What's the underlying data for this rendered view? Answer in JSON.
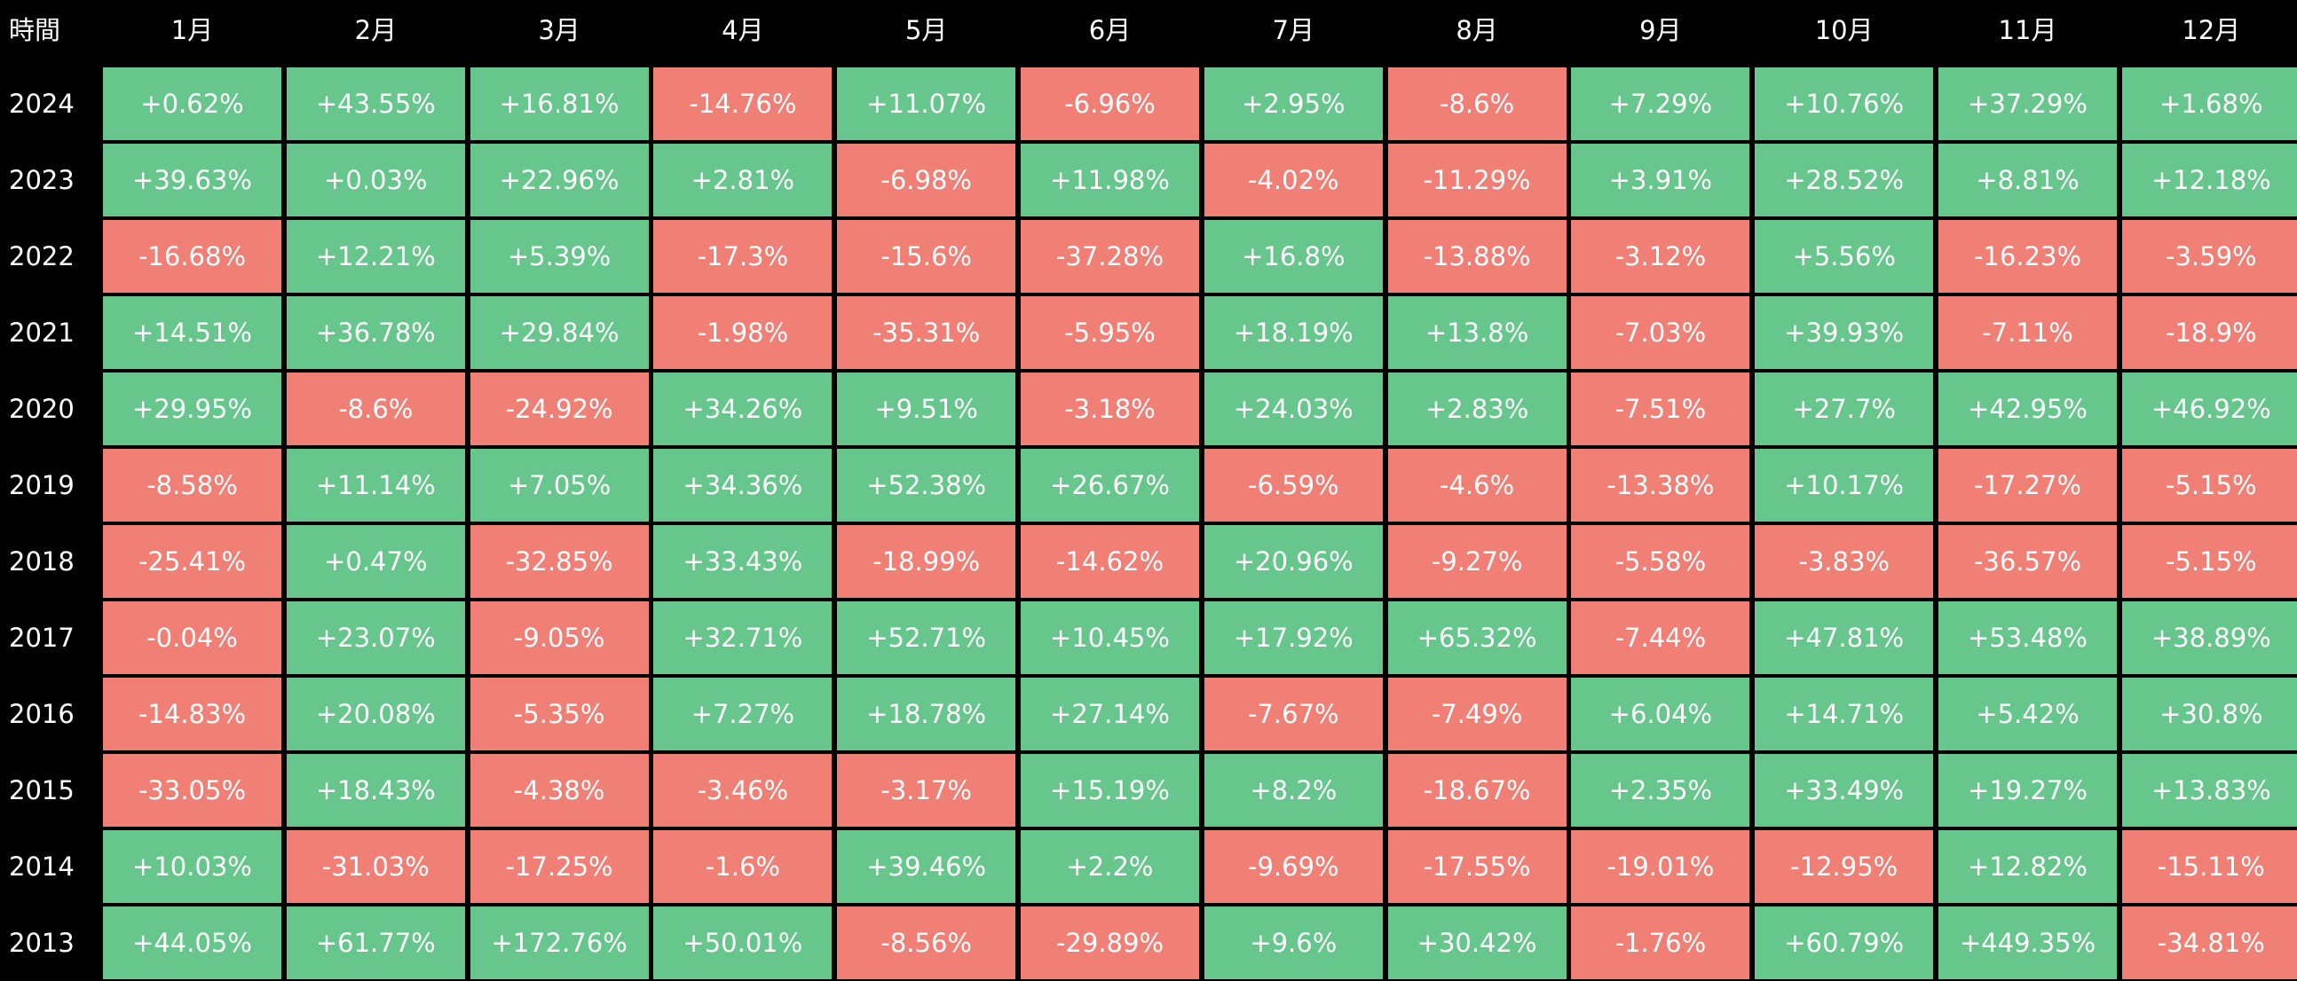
{
  "colors": {
    "background": "#000000",
    "positive": "#66c68c",
    "negative": "#f07f76",
    "text": "#ffffff"
  },
  "chart_data": {
    "type": "heatmap",
    "corner_label": "時間",
    "columns": [
      "1月",
      "2月",
      "3月",
      "4月",
      "5月",
      "6月",
      "7月",
      "8月",
      "9月",
      "10月",
      "11月",
      "12月"
    ],
    "rows": [
      {
        "year": "2024",
        "values": [
          "+0.62%",
          "+43.55%",
          "+16.81%",
          "-14.76%",
          "+11.07%",
          "-6.96%",
          "+2.95%",
          "-8.6%",
          "+7.29%",
          "+10.76%",
          "+37.29%",
          "+1.68%"
        ]
      },
      {
        "year": "2023",
        "values": [
          "+39.63%",
          "+0.03%",
          "+22.96%",
          "+2.81%",
          "-6.98%",
          "+11.98%",
          "-4.02%",
          "-11.29%",
          "+3.91%",
          "+28.52%",
          "+8.81%",
          "+12.18%"
        ]
      },
      {
        "year": "2022",
        "values": [
          "-16.68%",
          "+12.21%",
          "+5.39%",
          "-17.3%",
          "-15.6%",
          "-37.28%",
          "+16.8%",
          "-13.88%",
          "-3.12%",
          "+5.56%",
          "-16.23%",
          "-3.59%"
        ]
      },
      {
        "year": "2021",
        "values": [
          "+14.51%",
          "+36.78%",
          "+29.84%",
          "-1.98%",
          "-35.31%",
          "-5.95%",
          "+18.19%",
          "+13.8%",
          "-7.03%",
          "+39.93%",
          "-7.11%",
          "-18.9%"
        ]
      },
      {
        "year": "2020",
        "values": [
          "+29.95%",
          "-8.6%",
          "-24.92%",
          "+34.26%",
          "+9.51%",
          "-3.18%",
          "+24.03%",
          "+2.83%",
          "-7.51%",
          "+27.7%",
          "+42.95%",
          "+46.92%"
        ]
      },
      {
        "year": "2019",
        "values": [
          "-8.58%",
          "+11.14%",
          "+7.05%",
          "+34.36%",
          "+52.38%",
          "+26.67%",
          "-6.59%",
          "-4.6%",
          "-13.38%",
          "+10.17%",
          "-17.27%",
          "-5.15%"
        ]
      },
      {
        "year": "2018",
        "values": [
          "-25.41%",
          "+0.47%",
          "-32.85%",
          "+33.43%",
          "-18.99%",
          "-14.62%",
          "+20.96%",
          "-9.27%",
          "-5.58%",
          "-3.83%",
          "-36.57%",
          "-5.15%"
        ]
      },
      {
        "year": "2017",
        "values": [
          "-0.04%",
          "+23.07%",
          "-9.05%",
          "+32.71%",
          "+52.71%",
          "+10.45%",
          "+17.92%",
          "+65.32%",
          "-7.44%",
          "+47.81%",
          "+53.48%",
          "+38.89%"
        ]
      },
      {
        "year": "2016",
        "values": [
          "-14.83%",
          "+20.08%",
          "-5.35%",
          "+7.27%",
          "+18.78%",
          "+27.14%",
          "-7.67%",
          "-7.49%",
          "+6.04%",
          "+14.71%",
          "+5.42%",
          "+30.8%"
        ]
      },
      {
        "year": "2015",
        "values": [
          "-33.05%",
          "+18.43%",
          "-4.38%",
          "-3.46%",
          "-3.17%",
          "+15.19%",
          "+8.2%",
          "-18.67%",
          "+2.35%",
          "+33.49%",
          "+19.27%",
          "+13.83%"
        ]
      },
      {
        "year": "2014",
        "values": [
          "+10.03%",
          "-31.03%",
          "-17.25%",
          "-1.6%",
          "+39.46%",
          "+2.2%",
          "-9.69%",
          "-17.55%",
          "-19.01%",
          "-12.95%",
          "+12.82%",
          "-15.11%"
        ]
      },
      {
        "year": "2013",
        "values": [
          "+44.05%",
          "+61.77%",
          "+172.76%",
          "+50.01%",
          "-8.56%",
          "-29.89%",
          "+9.6%",
          "+30.42%",
          "-1.76%",
          "+60.79%",
          "+449.35%",
          "-34.81%"
        ]
      }
    ]
  }
}
